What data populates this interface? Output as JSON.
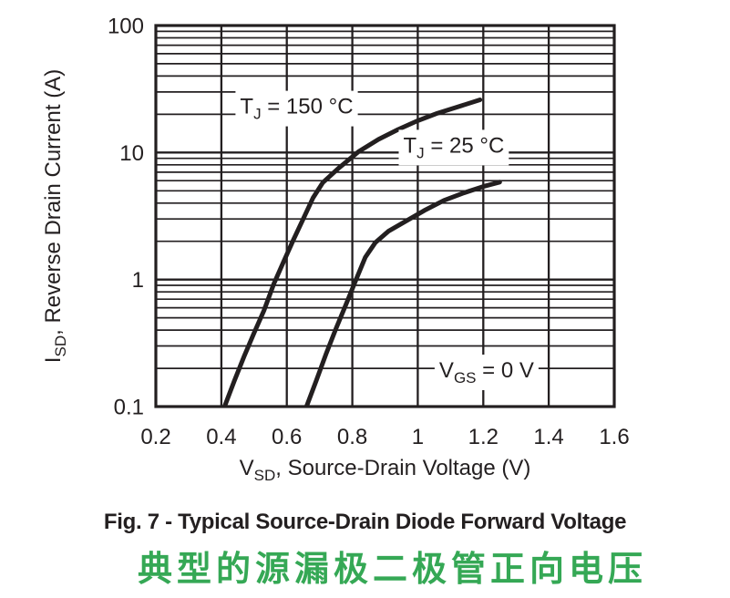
{
  "colors": {
    "ink": "#231f20",
    "accent_green": "#35a855",
    "background": "#ffffff",
    "label_box": "#ffffff"
  },
  "figure": {
    "caption": "Fig. 7 - Typical Source-Drain Diode Forward Voltage",
    "caption_zh": "典型的源漏极二极管正向电压"
  },
  "chart_data": {
    "type": "line",
    "title": "Fig. 7 - Typical Source-Drain Diode Forward Voltage",
    "grid": "on",
    "legend_position": "none (inline labels)",
    "x_axis": {
      "scale": "linear",
      "min": 0.2,
      "max": 1.6,
      "label_segments": [
        {
          "t": "V"
        },
        {
          "t": "SD",
          "sub": true
        },
        {
          "t": ", Source-Drain Voltage (V)"
        }
      ],
      "ticks": [
        {
          "v": 0.2,
          "label": "0.2"
        },
        {
          "v": 0.4,
          "label": "0.4"
        },
        {
          "v": 0.6,
          "label": "0.6"
        },
        {
          "v": 0.8,
          "label": "0.8"
        },
        {
          "v": 1.0,
          "label": "1"
        },
        {
          "v": 1.2,
          "label": "1.2"
        },
        {
          "v": 1.4,
          "label": "1.4"
        },
        {
          "v": 1.6,
          "label": "1.6"
        }
      ]
    },
    "y_axis": {
      "scale": "log",
      "min": 0.1,
      "max": 100,
      "minor_grid": true,
      "label_segments": [
        {
          "t": "I"
        },
        {
          "t": "SD",
          "sub": true
        },
        {
          "t": ", Reverse Drain Current (A)"
        }
      ],
      "ticks": [
        {
          "v": 0.1,
          "label": "0.1"
        },
        {
          "v": 1,
          "label": "1"
        },
        {
          "v": 10,
          "label": "10"
        },
        {
          "v": 100,
          "label": "100"
        }
      ]
    },
    "series": [
      {
        "id": "tj-150c",
        "name": "TJ = 150 °C",
        "points": [
          [
            0.41,
            0.1
          ],
          [
            0.44,
            0.16
          ],
          [
            0.47,
            0.25
          ],
          [
            0.5,
            0.38
          ],
          [
            0.53,
            0.57
          ],
          [
            0.56,
            0.92
          ],
          [
            0.59,
            1.38
          ],
          [
            0.62,
            2.05
          ],
          [
            0.65,
            3.0
          ],
          [
            0.68,
            4.4
          ],
          [
            0.71,
            5.8
          ],
          [
            0.76,
            7.6
          ],
          [
            0.82,
            10.2
          ],
          [
            0.88,
            12.7
          ],
          [
            0.94,
            15.2
          ],
          [
            1.0,
            17.8
          ],
          [
            1.06,
            20.4
          ],
          [
            1.12,
            22.8
          ],
          [
            1.19,
            26.0
          ]
        ]
      },
      {
        "id": "tj-25c",
        "name": "TJ = 25 °C",
        "points": [
          [
            0.66,
            0.1
          ],
          [
            0.69,
            0.16
          ],
          [
            0.72,
            0.26
          ],
          [
            0.75,
            0.41
          ],
          [
            0.78,
            0.63
          ],
          [
            0.81,
            0.98
          ],
          [
            0.84,
            1.5
          ],
          [
            0.87,
            1.95
          ],
          [
            0.91,
            2.4
          ],
          [
            0.96,
            2.85
          ],
          [
            1.02,
            3.5
          ],
          [
            1.08,
            4.2
          ],
          [
            1.14,
            4.8
          ],
          [
            1.2,
            5.4
          ],
          [
            1.25,
            5.85
          ]
        ]
      }
    ],
    "annotations": [
      {
        "id": "label-tj-150c",
        "segments": [
          {
            "t": "T"
          },
          {
            "t": "J",
            "sub": true
          },
          {
            "t": " = 150 °C"
          }
        ],
        "x": 0.63,
        "y": 23.5
      },
      {
        "id": "label-tj-25c",
        "segments": [
          {
            "t": "T"
          },
          {
            "t": "J",
            "sub": true
          },
          {
            "t": " = 25 °C"
          }
        ],
        "x": 1.11,
        "y": 11.6
      },
      {
        "id": "label-vgs",
        "segments": [
          {
            "t": "V"
          },
          {
            "t": "GS",
            "sub": true
          },
          {
            "t": " = 0 V"
          }
        ],
        "x": 1.21,
        "y": 0.197
      }
    ]
  }
}
